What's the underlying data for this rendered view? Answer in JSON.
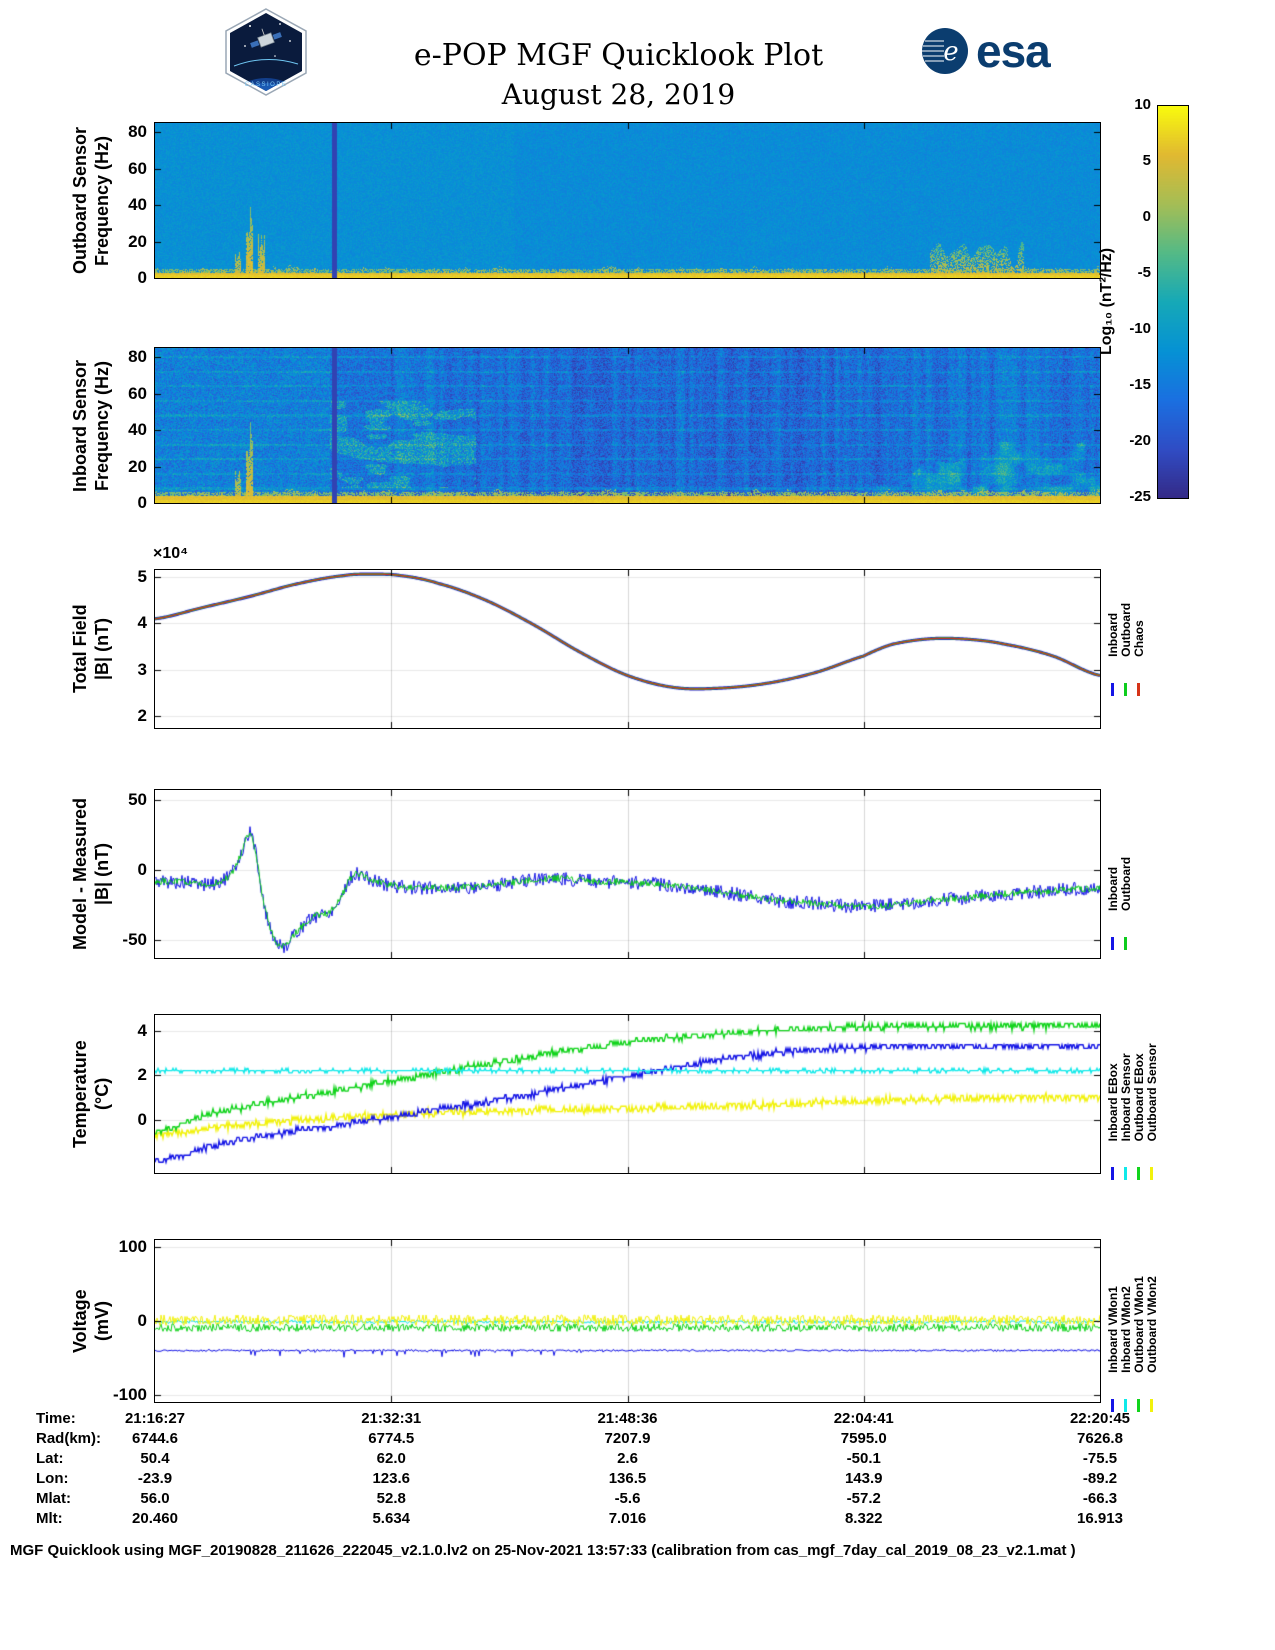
{
  "header": {
    "title": "e-POP MGF Quicklook Plot",
    "subtitle": "August 28, 2019",
    "mission_logo_text": "CASSIOPE",
    "esa_logo_text": "esa"
  },
  "colorbar": {
    "label": "Log₁₀ (nT²/Hz)",
    "ticks": [
      10,
      5,
      0,
      -5,
      -10,
      -15,
      -20,
      -25
    ],
    "vmin": -25,
    "vmax": 10,
    "colormap_stops": [
      "#352a87",
      "#304dc5",
      "#1b70e1",
      "#0692d5",
      "#16a9b8",
      "#54ba87",
      "#a5be56",
      "#e1b932",
      "#f9fb0e"
    ]
  },
  "chart_data": [
    {
      "id": "outboard_spectrogram",
      "type": "heatmap",
      "ylabel": "Outboard Sensor\nFrequency (Hz)",
      "yticks": [
        80,
        60,
        40,
        20,
        0
      ],
      "ylim": [
        0,
        85
      ],
      "value_units": "Log10 (nT^2/Hz)",
      "background_level": -12,
      "background_noise": 1.8,
      "seed": 11,
      "features": [
        {
          "kind": "region_boost",
          "x0": 0.38,
          "x1": 1.0,
          "boost": -0.8
        },
        {
          "kind": "fuzz",
          "x0": 0.0,
          "x1": 1.0,
          "height_hz": 7,
          "level": 1,
          "density": 0.25
        },
        {
          "kind": "fuzz",
          "x0": 0.82,
          "x1": 0.92,
          "height_hz": 20,
          "level": 2,
          "density": 0.5
        },
        {
          "kind": "spike",
          "x": 0.088,
          "height_hz": 16,
          "level": 2
        },
        {
          "kind": "spike",
          "x": 0.1,
          "height_hz": 40,
          "level": 4
        },
        {
          "kind": "spike",
          "x": 0.113,
          "height_hz": 26,
          "level": 3
        },
        {
          "kind": "bottom_band",
          "height_hz": 3,
          "level": 6
        },
        {
          "kind": "vertical_gap",
          "x": 0.19,
          "width": 0.005,
          "level": -22
        }
      ],
      "legend": []
    },
    {
      "id": "inboard_spectrogram",
      "type": "heatmap",
      "ylabel": "Inboard Sensor\nFrequency (Hz)",
      "yticks": [
        80,
        60,
        40,
        20,
        0
      ],
      "ylim": [
        0,
        85
      ],
      "value_units": "Log10 (nT^2/Hz)",
      "background_level": -16,
      "background_noise": 4.5,
      "seed": 23,
      "features": [
        {
          "kind": "region_boost",
          "x0": 0.0,
          "x1": 0.185,
          "boost": 2.5
        },
        {
          "kind": "region_boost",
          "x0": 0.34,
          "x1": 0.78,
          "boost": -1.2
        },
        {
          "kind": "harmonic_lines",
          "spacing_hz": 8,
          "boost": 4.5
        },
        {
          "kind": "vstripes",
          "x0": 0.25,
          "x1": 1.0,
          "amp": 2.2
        },
        {
          "kind": "chirps",
          "x0": 0.185,
          "x1": 0.34,
          "f0": 8,
          "f1": 56,
          "boost": 8
        },
        {
          "kind": "mottle",
          "x0": 0.76,
          "x1": 1.0,
          "f1": 62,
          "boost": 13
        },
        {
          "kind": "fuzz",
          "x0": 0.0,
          "x1": 1.0,
          "height_hz": 8,
          "level": 1,
          "density": 0.35
        },
        {
          "kind": "spike",
          "x": 0.088,
          "height_hz": 20,
          "level": 2
        },
        {
          "kind": "spike",
          "x": 0.1,
          "height_hz": 46,
          "level": 4
        },
        {
          "kind": "bottom_band",
          "height_hz": 4,
          "level": 6
        },
        {
          "kind": "vertical_gap",
          "x": 0.19,
          "width": 0.005,
          "level": -22
        }
      ],
      "legend": []
    },
    {
      "id": "total_field",
      "type": "line",
      "ylabel": "Total Field\n|B| (nT)",
      "scale_label": "×10⁴",
      "yticks": [
        5,
        4,
        3,
        2
      ],
      "ylim": [
        1.75,
        5.15
      ],
      "x": [
        0,
        0.05,
        0.1,
        0.15,
        0.2,
        0.23,
        0.26,
        0.3,
        0.35,
        0.4,
        0.45,
        0.5,
        0.55,
        0.6,
        0.65,
        0.7,
        0.75,
        0.78,
        0.82,
        0.86,
        0.9,
        0.95,
        1.0
      ],
      "y_base": [
        4.1,
        4.34,
        4.58,
        4.85,
        5.03,
        5.06,
        5.03,
        4.86,
        4.5,
        3.98,
        3.38,
        2.88,
        2.62,
        2.61,
        2.72,
        2.95,
        3.3,
        3.55,
        3.67,
        3.66,
        3.55,
        3.3,
        2.88
      ],
      "series": [
        {
          "name": "Inboard",
          "color": "#1515e6",
          "width": 3.2,
          "y_base": true,
          "seed": 2
        },
        {
          "name": "Outboard",
          "color": "#0ecc1e",
          "width": 2.0,
          "y_base": true,
          "seed": 3
        },
        {
          "name": "Chaos",
          "color": "#d63318",
          "width": 1.3,
          "y_base": true,
          "seed": 4
        }
      ],
      "legend": [
        {
          "label": "Inboard",
          "color": "#1515e6"
        },
        {
          "label": "Outboard",
          "color": "#0ecc1e"
        },
        {
          "label": "Chaos",
          "color": "#d63318"
        }
      ],
      "legend_anchor": 0.55
    },
    {
      "id": "model_minus_measured",
      "type": "line",
      "ylabel": "Model - Measured\n|B| (nT)",
      "yticks": [
        50,
        0,
        -50
      ],
      "ylim": [
        -63,
        57
      ],
      "x": [
        0,
        0.03,
        0.06,
        0.08,
        0.09,
        0.1,
        0.105,
        0.11,
        0.115,
        0.125,
        0.135,
        0.15,
        0.17,
        0.185,
        0.195,
        0.205,
        0.215,
        0.23,
        0.26,
        0.3,
        0.34,
        0.38,
        0.42,
        0.46,
        0.5,
        0.54,
        0.58,
        0.62,
        0.66,
        0.7,
        0.74,
        0.78,
        0.82,
        0.86,
        0.9,
        0.95,
        1.0
      ],
      "y_base": [
        -8,
        -9,
        -10,
        -4,
        10,
        26,
        18,
        -2,
        -25,
        -47,
        -55,
        -44,
        -33,
        -30,
        -22,
        -8,
        -3,
        -8,
        -12,
        -13,
        -12,
        -9,
        -6,
        -8,
        -9,
        -11,
        -14,
        -18,
        -22,
        -24,
        -26,
        -25,
        -22,
        -20,
        -17,
        -15,
        -13
      ],
      "series": [
        {
          "name": "Inboard",
          "color": "#1515e6",
          "width": 1,
          "noise": 5.0,
          "y_base": true,
          "seed": 5
        },
        {
          "name": "Outboard",
          "color": "#0ecc1e",
          "width": 1,
          "noise": 2.4,
          "y_base": true,
          "seed": 6
        }
      ],
      "legend": [
        {
          "label": "Inboard",
          "color": "#1515e6"
        },
        {
          "label": "Outboard",
          "color": "#0ecc1e"
        }
      ],
      "legend_anchor": 0.72
    },
    {
      "id": "temperature",
      "type": "line",
      "ylabel": "Temperature\n(°C)",
      "yticks": [
        4,
        2,
        0
      ],
      "ylim": [
        -2.4,
        4.7
      ],
      "x": [
        0,
        0.05,
        0.1,
        0.15,
        0.2,
        0.25,
        0.3,
        0.35,
        0.4,
        0.45,
        0.5,
        0.55,
        0.6,
        0.65,
        0.7,
        0.75,
        0.8,
        0.85,
        0.9,
        0.95,
        1.0
      ],
      "series": [
        {
          "name": "Outboard Sensor",
          "color": "#f2f20c",
          "width": 1.4,
          "noise": 0.16,
          "quant": 0.12,
          "seed": 9,
          "y": [
            -0.7,
            -0.45,
            -0.2,
            -0.05,
            0.1,
            0.2,
            0.3,
            0.35,
            0.4,
            0.45,
            0.5,
            0.55,
            0.6,
            0.65,
            0.75,
            0.85,
            0.9,
            0.95,
            1.0,
            1.0,
            1.0
          ]
        },
        {
          "name": "Inboard EBox",
          "color": "#1515e6",
          "width": 1.4,
          "noise": 0.14,
          "quant": 0.16,
          "seed": 10,
          "y": [
            -1.9,
            -1.3,
            -0.85,
            -0.5,
            -0.2,
            0.1,
            0.45,
            0.8,
            1.15,
            1.55,
            1.95,
            2.35,
            2.7,
            2.95,
            3.15,
            3.25,
            3.3,
            3.3,
            3.3,
            3.3,
            3.3
          ]
        },
        {
          "name": "Outboard EBox",
          "color": "#12d41c",
          "width": 1.4,
          "noise": 0.14,
          "quant": 0.16,
          "seed": 11,
          "y": [
            -0.6,
            0.15,
            0.6,
            1.0,
            1.35,
            1.75,
            2.1,
            2.5,
            2.85,
            3.2,
            3.5,
            3.7,
            3.85,
            4.0,
            4.1,
            4.15,
            4.2,
            4.2,
            4.2,
            4.2,
            4.2
          ]
        },
        {
          "name": "Inboard Sensor",
          "color": "#10e9e9",
          "width": 1.4,
          "noise": 0.07,
          "quant": 0.1,
          "seed": 12,
          "y": 2.2
        }
      ],
      "legend": [
        {
          "label": "Inboard EBox",
          "color": "#1515e6"
        },
        {
          "label": "Inboard Sensor",
          "color": "#10e9e9"
        },
        {
          "label": "Outboard EBox",
          "color": "#12d41c"
        },
        {
          "label": "Outboard Sensor",
          "color": "#f2f20c"
        }
      ],
      "legend_anchor": 0.8
    },
    {
      "id": "voltage",
      "type": "line",
      "ylabel": "Voltage\n(mV)",
      "yticks": [
        100,
        0,
        -100
      ],
      "ylim": [
        -110,
        110
      ],
      "x": [
        0,
        0.25,
        0.5,
        0.75,
        1.0
      ],
      "series": [
        {
          "name": "Inboard VMon1",
          "color": "#1515e6",
          "width": 1,
          "noise": 1.2,
          "seed": 13,
          "y": -40,
          "spikes": {
            "x0": 0.09,
            "x1": 0.5,
            "prob": 0.1,
            "amp": 9,
            "dir": -1
          }
        },
        {
          "name": "Inboard VMon2",
          "color": "#10e9e9",
          "width": 1,
          "noise": 2.0,
          "quant": 1.5,
          "seed": 14,
          "y": -1
        },
        {
          "name": "Outboard VMon1",
          "color": "#12d41c",
          "width": 1,
          "noise": 5.0,
          "quant": 2,
          "seed": 15,
          "y": -9
        },
        {
          "name": "Outboard VMon2",
          "color": "#f2f20c",
          "width": 1,
          "noise": 7.0,
          "quant": 2,
          "seed": 16,
          "y": 1
        }
      ],
      "legend": [
        {
          "label": "Inboard VMon1",
          "color": "#1515e6"
        },
        {
          "label": "Inboard VMon2",
          "color": "#10e9e9"
        },
        {
          "label": "Outboard VMon1",
          "color": "#12d41c"
        },
        {
          "label": "Outboard VMon2",
          "color": "#f2f20c"
        }
      ],
      "legend_anchor": 0.82
    }
  ],
  "table": {
    "rows": [
      {
        "label": "Time:",
        "values": [
          "21:16:27",
          "21:32:31",
          "21:48:36",
          "22:04:41",
          "22:20:45"
        ]
      },
      {
        "label": "Rad(km):",
        "values": [
          "6744.6",
          "6774.5",
          "7207.9",
          "7595.0",
          "7626.8"
        ]
      },
      {
        "label": "Lat:",
        "values": [
          "50.4",
          "62.0",
          "2.6",
          "-50.1",
          "-75.5"
        ]
      },
      {
        "label": "Lon:",
        "values": [
          "-23.9",
          "123.6",
          "136.5",
          "143.9",
          "-89.2"
        ]
      },
      {
        "label": "Mlat:",
        "values": [
          "56.0",
          "52.8",
          "-5.6",
          "-57.2",
          "-66.3"
        ]
      },
      {
        "label": "Mlt:",
        "values": [
          "20.460",
          "5.634",
          "7.016",
          "8.322",
          "16.913"
        ]
      }
    ]
  },
  "footer": {
    "text": "MGF Quicklook using MGF_20190828_211626_222045_v2.1.0.lv2 on 25-Nov-2021 13:57:33 (calibration from cas_mgf_7day_cal_2019_08_23_v2.1.mat )"
  }
}
